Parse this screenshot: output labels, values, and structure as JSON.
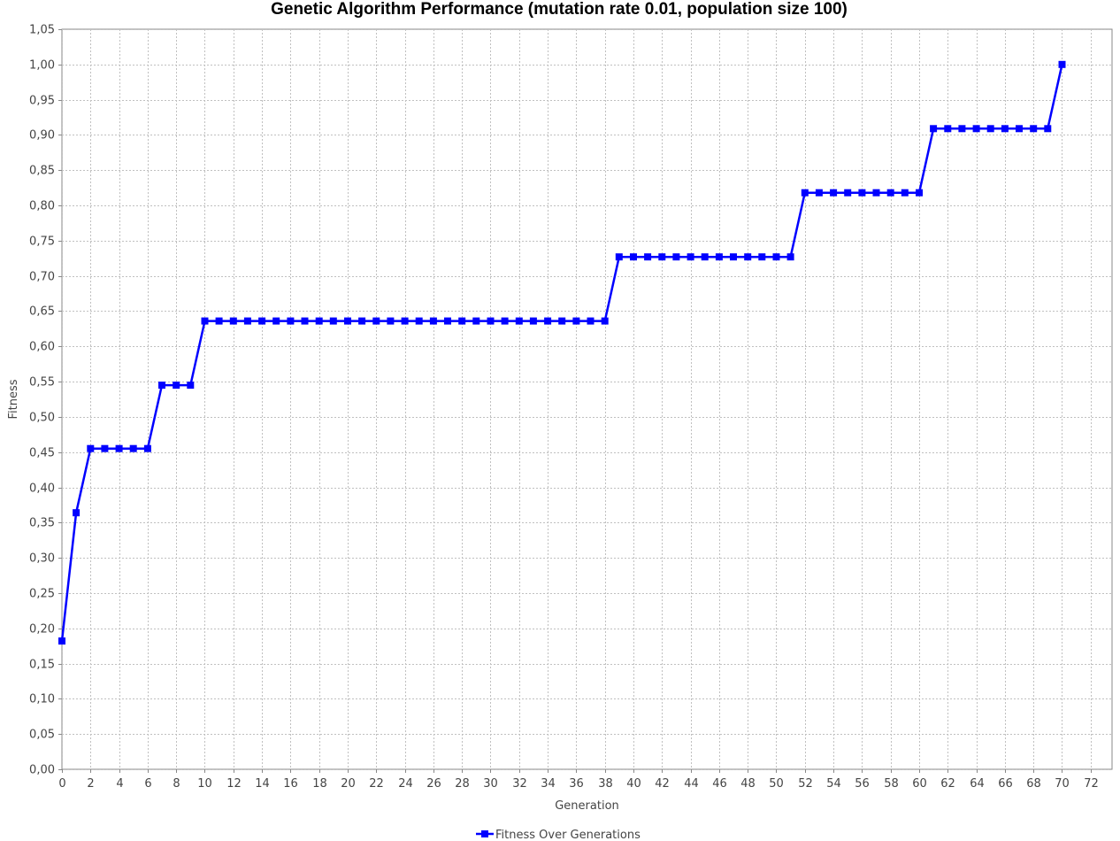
{
  "chart_data": {
    "type": "line",
    "title": "Genetic Algorithm Performance (mutation rate 0.01, population size 100)",
    "xlabel": "Generation",
    "ylabel": "Fitness",
    "xlim": [
      0,
      73.5
    ],
    "ylim": [
      0,
      1.05
    ],
    "x_ticks": [
      "0",
      "2",
      "4",
      "6",
      "8",
      "10",
      "12",
      "14",
      "16",
      "18",
      "20",
      "22",
      "24",
      "26",
      "28",
      "30",
      "32",
      "34",
      "36",
      "38",
      "40",
      "42",
      "44",
      "46",
      "48",
      "50",
      "52",
      "54",
      "56",
      "58",
      "60",
      "62",
      "64",
      "66",
      "68",
      "70",
      "72"
    ],
    "y_ticks": [
      "0,00",
      "0,05",
      "0,10",
      "0,15",
      "0,20",
      "0,25",
      "0,30",
      "0,35",
      "0,40",
      "0,45",
      "0,50",
      "0,55",
      "0,60",
      "0,65",
      "0,70",
      "0,75",
      "0,80",
      "0,85",
      "0,90",
      "0,95",
      "1,00",
      "1,05"
    ],
    "grid": true,
    "legend_position": "bottom-center",
    "series": [
      {
        "name": "Fitness Over Generations",
        "color": "#0000ff",
        "marker": "square",
        "x": [
          0,
          1,
          2,
          3,
          4,
          5,
          6,
          7,
          8,
          9,
          10,
          11,
          12,
          13,
          14,
          15,
          16,
          17,
          18,
          19,
          20,
          21,
          22,
          23,
          24,
          25,
          26,
          27,
          28,
          29,
          30,
          31,
          32,
          33,
          34,
          35,
          36,
          37,
          38,
          39,
          40,
          41,
          42,
          43,
          44,
          45,
          46,
          47,
          48,
          49,
          50,
          51,
          52,
          53,
          54,
          55,
          56,
          57,
          58,
          59,
          60,
          61,
          62,
          63,
          64,
          65,
          66,
          67,
          68,
          69,
          70
        ],
        "values": [
          0.182,
          0.364,
          0.455,
          0.455,
          0.455,
          0.455,
          0.455,
          0.545,
          0.545,
          0.545,
          0.636,
          0.636,
          0.636,
          0.636,
          0.636,
          0.636,
          0.636,
          0.636,
          0.636,
          0.636,
          0.636,
          0.636,
          0.636,
          0.636,
          0.636,
          0.636,
          0.636,
          0.636,
          0.636,
          0.636,
          0.636,
          0.636,
          0.636,
          0.636,
          0.636,
          0.636,
          0.636,
          0.636,
          0.636,
          0.727,
          0.727,
          0.727,
          0.727,
          0.727,
          0.727,
          0.727,
          0.727,
          0.727,
          0.727,
          0.727,
          0.727,
          0.727,
          0.818,
          0.818,
          0.818,
          0.818,
          0.818,
          0.818,
          0.818,
          0.818,
          0.818,
          0.909,
          0.909,
          0.909,
          0.909,
          0.909,
          0.909,
          0.909,
          0.909,
          0.909,
          1.0
        ]
      }
    ]
  }
}
